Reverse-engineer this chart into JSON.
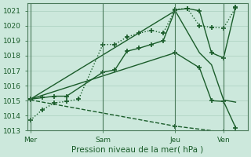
{
  "xlabel": "Pression niveau de la mer( hPa )",
  "ylim": [
    1013.0,
    1021.5
  ],
  "yticks": [
    1013,
    1014,
    1015,
    1016,
    1017,
    1018,
    1019,
    1020,
    1021
  ],
  "xtick_labels": [
    "Mer",
    "Sam",
    "Jeu",
    "Ven"
  ],
  "xtick_positions": [
    0,
    24,
    48,
    64
  ],
  "xlim": [
    -1,
    72
  ],
  "bg_color": "#cce8dc",
  "grid_color": "#aacfbe",
  "line_color": "#1a5c2a",
  "line1_dotted": {
    "x": [
      0,
      4,
      8,
      12,
      16,
      24,
      28,
      32,
      36,
      40,
      44,
      48,
      52,
      56,
      60,
      64,
      68
    ],
    "y": [
      1013.7,
      1014.4,
      1014.85,
      1014.95,
      1015.1,
      1018.75,
      1018.75,
      1019.25,
      1019.5,
      1019.7,
      1019.5,
      1021.1,
      1021.15,
      1020.0,
      1019.9,
      1019.85,
      1021.2
    ]
  },
  "line2_solid_up": {
    "x": [
      0,
      4,
      8,
      12,
      24,
      28,
      32,
      36,
      40,
      44,
      48,
      52,
      56,
      60,
      64,
      68
    ],
    "y": [
      1015.1,
      1015.2,
      1015.3,
      1015.3,
      1016.9,
      1017.05,
      1018.3,
      1018.5,
      1018.75,
      1019.0,
      1021.05,
      1021.15,
      1021.0,
      1018.2,
      1017.85,
      1021.25
    ]
  },
  "line3_solid_fan1": {
    "x": [
      0,
      48,
      56,
      60,
      64,
      68
    ],
    "y": [
      1015.1,
      1018.2,
      1017.2,
      1015.0,
      1014.95,
      1013.2
    ]
  },
  "line4_solid_fan2": {
    "x": [
      0,
      48,
      56,
      60,
      64,
      68
    ],
    "y": [
      1015.1,
      1021.0,
      1018.2,
      1017.4,
      1015.05,
      1014.9
    ]
  },
  "line5_dashed_down": {
    "x": [
      0,
      48,
      64,
      68
    ],
    "y": [
      1015.05,
      1013.3,
      1012.9,
      1012.8
    ]
  }
}
